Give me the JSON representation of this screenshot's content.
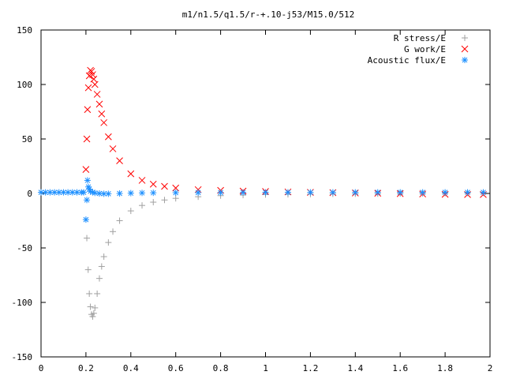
{
  "chart_data": {
    "type": "scatter",
    "title": "m1/n1.5/q1.5/r-+.10-j53/M15.0/512",
    "xlabel": "",
    "ylabel": "",
    "xlim": [
      0,
      2
    ],
    "ylim": [
      -150,
      150
    ],
    "x_ticks": [
      "0",
      "0.2",
      "0.4",
      "0.6",
      "0.8",
      "1",
      "1.2",
      "1.4",
      "1.6",
      "1.8",
      "2"
    ],
    "y_ticks": [
      "150",
      "100",
      "50",
      "0",
      "-50",
      "-100",
      "-150"
    ],
    "grid": false,
    "legend_position": "top-right",
    "series": [
      {
        "name": "R stress/E",
        "marker": "plus",
        "color": "#a0a0a0",
        "x": [
          0.204,
          0.21,
          0.215,
          0.22,
          0.225,
          0.23,
          0.235,
          0.24,
          0.25,
          0.26,
          0.27,
          0.28,
          0.3,
          0.32,
          0.35,
          0.4,
          0.45,
          0.5,
          0.55,
          0.6,
          0.7,
          0.8,
          0.9,
          1.0,
          1.1,
          1.2,
          1.3,
          1.4,
          1.5,
          1.6,
          1.7,
          1.8,
          1.9,
          1.97
        ],
        "y": [
          -41,
          -70,
          -92,
          -104,
          -111,
          -113,
          -110,
          -105,
          -92,
          -78,
          -67,
          -58,
          -45,
          -35,
          -25,
          -16,
          -11,
          -8,
          -6,
          -4.5,
          -3,
          -2,
          -1.5,
          -1,
          -0.8,
          -0.6,
          -0.4,
          -0.3,
          -0.2,
          -0.1,
          0,
          0.2,
          0.4,
          0.5
        ]
      },
      {
        "name": "G work/E",
        "marker": "cross",
        "color": "#ff0000",
        "x": [
          0.2,
          0.204,
          0.207,
          0.211,
          0.215,
          0.22,
          0.225,
          0.23,
          0.235,
          0.24,
          0.25,
          0.26,
          0.27,
          0.28,
          0.3,
          0.32,
          0.35,
          0.4,
          0.45,
          0.5,
          0.55,
          0.6,
          0.7,
          0.8,
          0.9,
          1.0,
          1.1,
          1.2,
          1.3,
          1.4,
          1.5,
          1.6,
          1.7,
          1.8,
          1.9,
          1.97
        ],
        "y": [
          22,
          50,
          77,
          97,
          108,
          113,
          112,
          109,
          105,
          100,
          91,
          82,
          73,
          65,
          52,
          41,
          30,
          18,
          12,
          8.5,
          6.5,
          5,
          3.5,
          2.8,
          2.2,
          1.8,
          1.4,
          1,
          0.7,
          0.4,
          0.2,
          -0.2,
          -0.5,
          -0.8,
          -1,
          -1
        ]
      },
      {
        "name": "Acoustic flux/E",
        "marker": "star",
        "color": "#1e90ff",
        "x": [
          0.0,
          0.02,
          0.04,
          0.06,
          0.08,
          0.1,
          0.12,
          0.14,
          0.16,
          0.18,
          0.19,
          0.2,
          0.204,
          0.207,
          0.211,
          0.215,
          0.22,
          0.23,
          0.24,
          0.26,
          0.28,
          0.3,
          0.35,
          0.4,
          0.45,
          0.5,
          0.6,
          0.7,
          0.8,
          0.9,
          1.0,
          1.1,
          1.2,
          1.3,
          1.4,
          1.5,
          1.6,
          1.7,
          1.8,
          1.9,
          1.97
        ],
        "y": [
          1,
          1,
          1,
          1,
          1,
          1,
          1,
          1,
          1,
          1,
          1,
          -24,
          -6,
          12,
          6,
          4,
          2,
          1,
          0.5,
          0,
          -0.3,
          -0.3,
          0,
          0.3,
          0.5,
          0.6,
          0.7,
          0.8,
          0.8,
          0.9,
          1,
          1,
          1,
          1,
          1,
          1,
          1,
          1,
          1,
          1,
          1
        ]
      }
    ]
  }
}
